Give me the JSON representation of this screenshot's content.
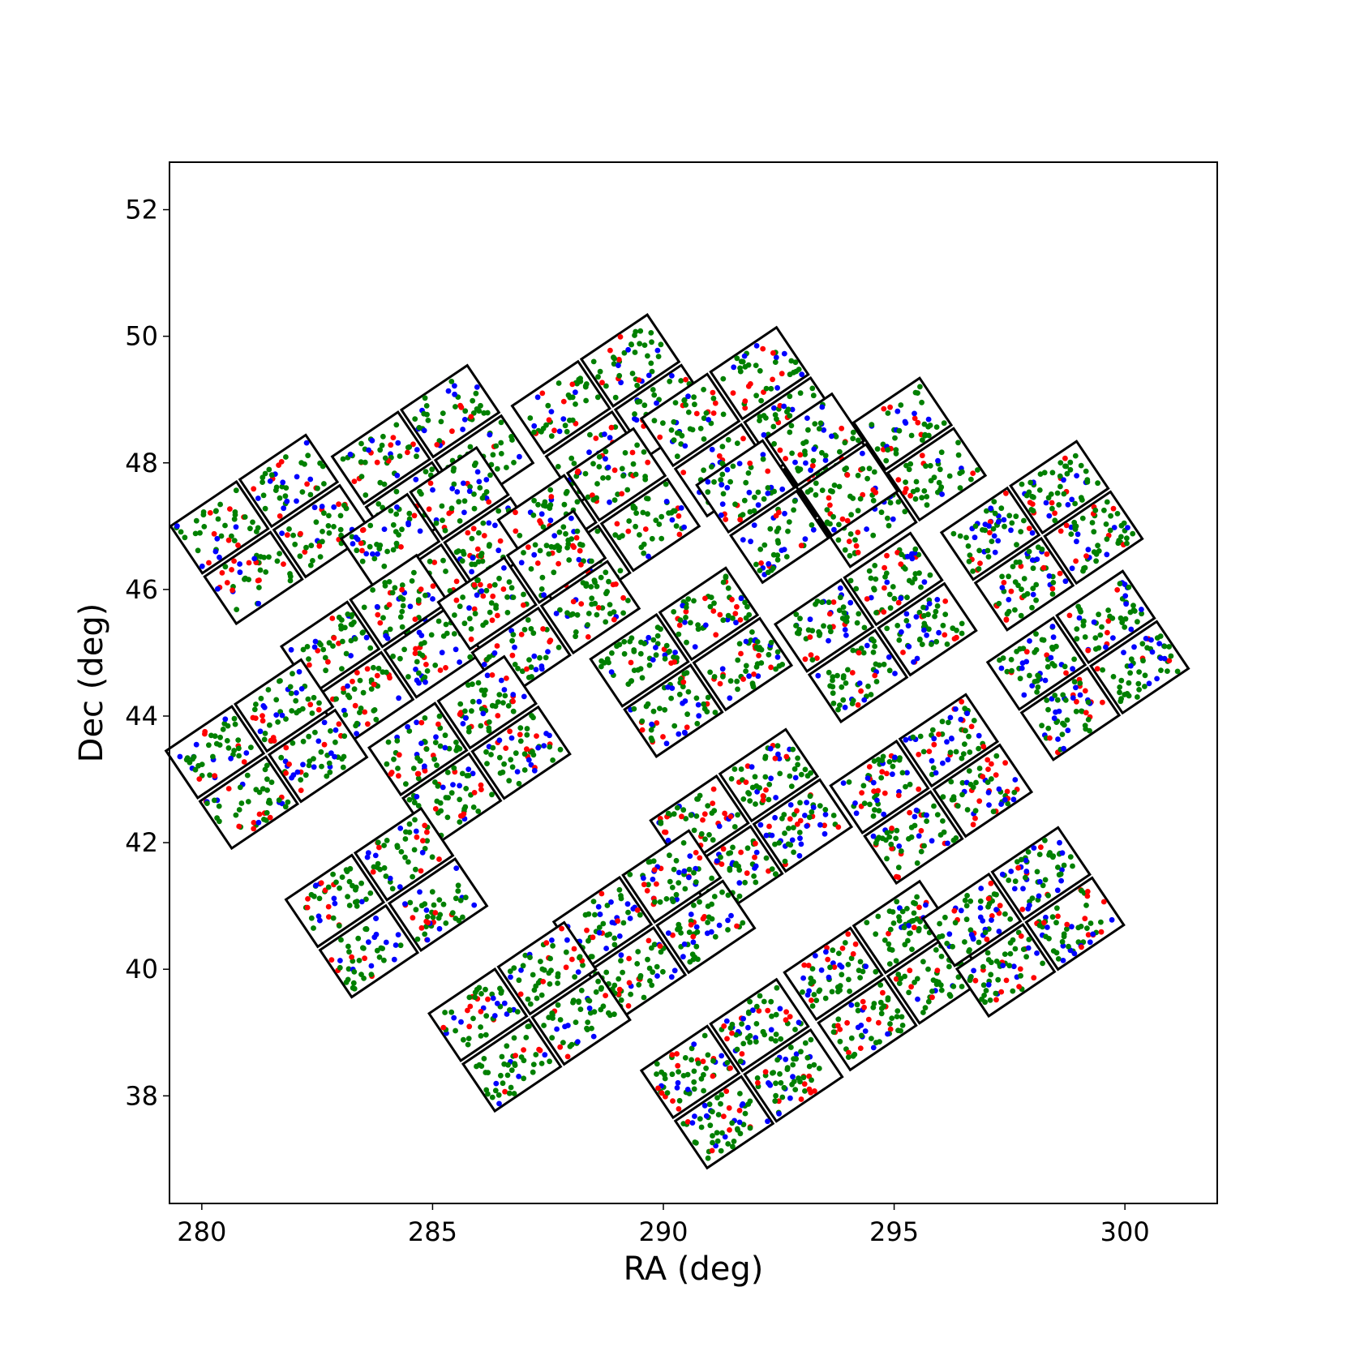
{
  "chart_data": {
    "type": "scatter",
    "title": "",
    "xlabel": "RA (deg)",
    "ylabel": "Dec (deg)",
    "xlim": [
      279.3,
      302.0
    ],
    "ylim": [
      36.3,
      52.75
    ],
    "x_ticks": [
      280,
      285,
      290,
      295,
      300
    ],
    "y_ticks": [
      38,
      40,
      42,
      44,
      46,
      48,
      50,
      52
    ],
    "grid": false,
    "legend": "none",
    "colors": {
      "points": [
        "#008000",
        "#ff0000",
        "#0000ff"
      ],
      "point_weights": [
        0.62,
        0.19,
        0.19
      ],
      "outline": "#000000"
    },
    "modules": [
      {
        "center": [
          285.0,
          48.05
        ],
        "density": 0.5
      },
      {
        "center": [
          288.9,
          48.85
        ],
        "density": 0.5
      },
      {
        "center": [
          291.7,
          48.65
        ],
        "density": 0.5
      },
      {
        "center": [
          294.8,
          47.85
        ],
        "density": 0.5
      },
      {
        "center": [
          281.5,
          46.95
        ],
        "density": 0.5
      },
      {
        "center": [
          285.2,
          46.75
        ],
        "density": 0.5
      },
      {
        "center": [
          288.6,
          47.05
        ],
        "density": 0.5
      },
      {
        "center": [
          292.9,
          47.6
        ],
        "density": 0.55
      },
      {
        "center": [
          298.2,
          46.85
        ],
        "density": 0.85
      },
      {
        "center": [
          283.9,
          45.05
        ],
        "density": 0.6
      },
      {
        "center": [
          287.3,
          45.75
        ],
        "density": 0.6
      },
      {
        "center": [
          290.6,
          44.85
        ],
        "density": 0.75
      },
      {
        "center": [
          294.6,
          45.4
        ],
        "density": 0.75
      },
      {
        "center": [
          299.2,
          44.8
        ],
        "density": 0.75
      },
      {
        "center": [
          281.4,
          43.4
        ],
        "density": 0.6
      },
      {
        "center": [
          285.8,
          43.45
        ],
        "density": 0.7
      },
      {
        "center": [
          291.9,
          42.3
        ],
        "density": 0.8
      },
      {
        "center": [
          295.8,
          42.85
        ],
        "density": 0.8
      },
      {
        "center": [
          284.0,
          41.05
        ],
        "density": 0.6
      },
      {
        "center": [
          289.8,
          40.7
        ],
        "density": 0.7
      },
      {
        "center": [
          294.8,
          39.9
        ],
        "density": 0.85
      },
      {
        "center": [
          297.8,
          40.75
        ],
        "density": 0.85
      },
      {
        "center": [
          287.1,
          39.25
        ],
        "density": 0.65
      },
      {
        "center": [
          291.7,
          38.35
        ],
        "density": 0.9
      }
    ]
  }
}
